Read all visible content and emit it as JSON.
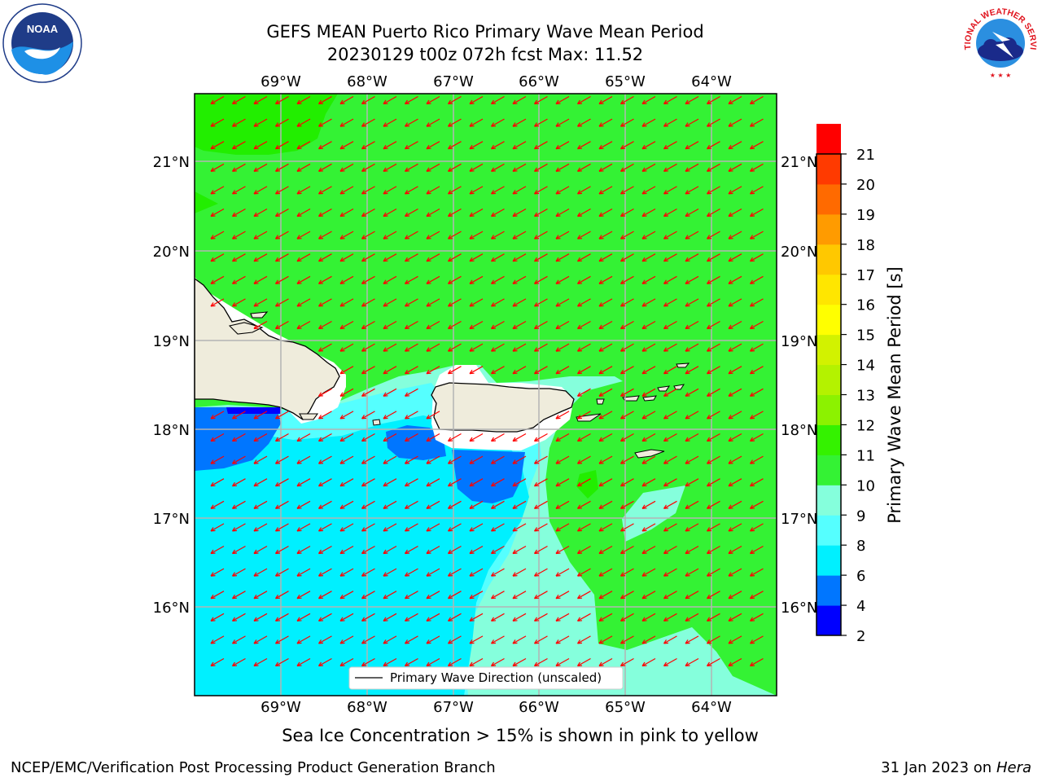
{
  "header": {
    "title": "GEFS MEAN Puerto Rico Primary Wave Mean Period",
    "subtitle": "20230129 t00z 072h fcst   Max: 11.52"
  },
  "logos": {
    "left": {
      "name": "noaa-logo",
      "text": "NOAA"
    },
    "right": {
      "name": "nws-logo",
      "text": "NATIONAL WEATHER SERVICE"
    }
  },
  "map": {
    "lon_labels": [
      "69°W",
      "68°W",
      "67°W",
      "66°W",
      "65°W",
      "64°W"
    ],
    "lat_labels": [
      "21°N",
      "20°N",
      "19°N",
      "18°N",
      "17°N",
      "16°N"
    ],
    "legend": {
      "label": "Primary Wave Direction (unscaled)"
    },
    "vector_color": "#ff0000",
    "land_color": "#efecdc"
  },
  "colorbar": {
    "label": "Primary Wave Mean Period [s]",
    "ticks": [
      "2",
      "4",
      "6",
      "8",
      "9",
      "10",
      "11",
      "12",
      "13",
      "14",
      "15",
      "16",
      "17",
      "18",
      "19",
      "20",
      "21"
    ],
    "colors": [
      "#0000ff",
      "#0076ff",
      "#00f0ff",
      "#55ffff",
      "#85ffdc",
      "#34f234",
      "#34f200",
      "#8cf200",
      "#b4f200",
      "#d2f200",
      "#ffff00",
      "#ffe600",
      "#ffc800",
      "#ff9b00",
      "#ff6a00",
      "#ff3a00",
      "#ff0000"
    ]
  },
  "note": "Sea Ice Concentration > 15% is shown in pink to yellow",
  "footer": {
    "left": "NCEP/EMC/Verification Post Processing Product Generation Branch",
    "right_prefix": "31 Jan 2023 on ",
    "right_host": "Hera"
  }
}
